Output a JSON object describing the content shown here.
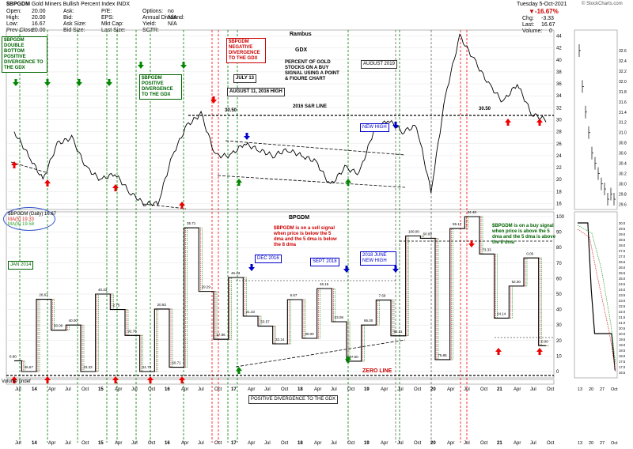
{
  "header": {
    "symbol": "$BPGDM",
    "description": "Gold Miners Bullish Percent Index",
    "exchange": "INDX",
    "date": "Tuesday  5-Oct-2021",
    "change_pct": "▼-16.67%",
    "chg_label": "Chg:",
    "chg_value": "-3.33",
    "last_label": "Last:",
    "last_value": "16.67",
    "volume_label": "Volume:",
    "volume_value": "0",
    "copyright": "© StockCharts.com",
    "fields": [
      [
        "Open",
        "20.00"
      ],
      [
        "High",
        "20.00"
      ],
      [
        "Low",
        "16.67"
      ],
      [
        "Prev Close",
        "20.00"
      ]
    ],
    "fields2": [
      [
        "Ask",
        ""
      ],
      [
        "Bid",
        ""
      ],
      [
        "Ask Size",
        ""
      ],
      [
        "Bid Size",
        ""
      ]
    ],
    "fields3": [
      [
        "P/E",
        ""
      ],
      [
        "EPS",
        ""
      ],
      [
        "Mkt Cap",
        ""
      ],
      [
        "Last Size",
        ""
      ]
    ],
    "fields4": [
      [
        "Options",
        "no"
      ],
      [
        "Annual Dividend",
        "N/A"
      ],
      [
        "Yield",
        "N/A"
      ],
      [
        "SCTR",
        ""
      ]
    ]
  },
  "legend": {
    "title": "$BPGDM (Daily) 16.67",
    "ma5": "MA(5) 19.33",
    "ma8": "MA(8) 19.58"
  },
  "volume_label": "Volume undef",
  "annotations": {
    "double_bottom": "$BPGDM DOUBLE BOTTOM POSITIVE DIVERGENCE TO THE GDX",
    "neg_div": "$BPGDM NEGATIVE DIVERGENCE TO THE GDX",
    "pos_div": "$BPGDM POSITIVE DIVERGENCE TO THE GDX",
    "july13": "JULY 13",
    "aug11": "AUGUST 11, 2016 HIGH",
    "rambus": "Rambus",
    "gdx": "GDX",
    "pct_text": "PERCENT OF GOLD STOCKS ON A BUY SIGNAL USING A POINT & FIGURE CHART",
    "aug2019": "AUGUST 2019",
    "sr_line": "2016 S&R LINE",
    "sr_value1": "30.50",
    "sr_value2": "30.50",
    "new_high": "NEW HIGH",
    "bpgdm_title": "BPGDM",
    "sell_signal": "$BPGDM is on a sell signal when price is below the 5 dma and the 5 dma is below the 8 dma",
    "buy_signal": "$BPGDM is on a buy signal when price is above the 5 dma and the 5 dma is above the 8 dma",
    "jan2014": "JAN 2014",
    "dec2016": "DEC 2016",
    "sept2018": "SEPT 2018",
    "june2018": "2018 JUNE NEW HIGH",
    "zero_line": "ZERO LINE",
    "pos_div_bottom": "POSITIVE DIVERGENCE TO THE GDX"
  },
  "chart_data": [
    {
      "type": "line",
      "title": "GDX",
      "ylim": [
        15,
        45
      ],
      "y_ticks": [
        44,
        42,
        40,
        38,
        36,
        34,
        32,
        30,
        28,
        26,
        24,
        22,
        20,
        18,
        16
      ],
      "x": [
        "2013-07",
        "2013-10",
        "2014-01",
        "2014-04",
        "2014-07",
        "2014-10",
        "2015-01",
        "2015-04",
        "2015-07",
        "2015-10",
        "2016-01",
        "2016-04",
        "2016-07",
        "2016-08",
        "2016-10",
        "2017-01",
        "2017-04",
        "2017-07",
        "2017-10",
        "2018-01",
        "2018-04",
        "2018-07",
        "2018-10",
        "2019-01",
        "2019-04",
        "2019-07",
        "2019-09",
        "2019-10",
        "2020-01",
        "2020-03",
        "2020-05",
        "2020-08",
        "2020-10",
        "2021-01",
        "2021-03",
        "2021-05",
        "2021-07",
        "2021-10"
      ],
      "values": [
        28,
        24,
        20,
        26,
        27,
        22,
        20,
        21,
        18,
        16,
        16,
        24,
        29,
        31,
        24,
        24,
        26,
        25,
        24,
        25,
        24,
        23,
        19,
        22,
        21,
        28,
        30,
        28,
        29,
        18,
        34,
        44,
        40,
        36,
        33,
        36,
        31,
        30
      ]
    },
    {
      "type": "line",
      "title": "BPGDM",
      "ylim": [
        0,
        100
      ],
      "y_ticks": [
        100,
        90,
        80,
        70,
        60,
        50,
        40,
        30,
        20,
        10,
        0
      ],
      "x": [
        "2013-07",
        "2013-10",
        "2014-01",
        "2014-04",
        "2014-07",
        "2014-10",
        "2015-01",
        "2015-04",
        "2015-07",
        "2015-10",
        "2016-01",
        "2016-04",
        "2016-06",
        "2016-08",
        "2016-10",
        "2017-01",
        "2017-04",
        "2017-07",
        "2017-10",
        "2018-01",
        "2018-04",
        "2018-07",
        "2018-10",
        "2019-01",
        "2019-04",
        "2019-07",
        "2019-10",
        "2020-01",
        "2020-03",
        "2020-05",
        "2020-08",
        "2020-10",
        "2021-01",
        "2021-03",
        "2021-05",
        "2021-07",
        "2021-10"
      ],
      "values": [
        6.9,
        0,
        46.67,
        26.67,
        30,
        0,
        50,
        40,
        23.33,
        0,
        40.33,
        2.75,
        92.76,
        51.72,
        20.83,
        60.71,
        35.71,
        29.29,
        17.86,
        46.43,
        21.43,
        53.57,
        32.14,
        6.67,
        30,
        46.15,
        23.08,
        87.5,
        86,
        7.69,
        92.31,
        100,
        75.86,
        34.48,
        55.17,
        73.33,
        16.67
      ],
      "data_labels": [
        "6.90",
        "46.67",
        "26.67",
        "50.00",
        "40.00",
        "23.33",
        "40.33",
        "2.75",
        "92.76",
        "51.72",
        "20.83",
        "60.71",
        "35.71",
        "29.29",
        "17.86",
        "46.43",
        "21.43",
        "53.57",
        "32.14",
        "6.67",
        "30.00",
        "46.15",
        "23.08",
        "87.50",
        "86.00",
        "7.69",
        "92.31",
        "100.00",
        "60.00",
        "75.86",
        "55.17",
        "34.48",
        "73.33",
        "24.14",
        "52.00",
        "0.00",
        "0.00"
      ],
      "series": [
        {
          "name": "MA(5) 19.33",
          "color": "#d62728"
        },
        {
          "name": "MA(8) 19.58",
          "color": "#2ca02c"
        }
      ]
    },
    {
      "type": "line",
      "title": "",
      "ylim": [
        29.5,
        33.0
      ],
      "y_ticks": [
        32.6,
        32.4,
        32.2,
        32.0,
        31.8,
        31.6,
        31.4,
        31.2,
        31.0,
        30.8,
        30.6,
        30.4,
        30.2,
        30.0,
        29.8,
        29.6
      ],
      "x_ticks": [
        "13",
        "20",
        "27",
        "Oct"
      ],
      "values": [
        32.6,
        31.9,
        31.4,
        31.0,
        30.6,
        30.4,
        30.2,
        30.0,
        29.9,
        29.7,
        29.8,
        29.7
      ]
    },
    {
      "type": "line",
      "title": "",
      "ylim": [
        16,
        31
      ],
      "y_ticks": [
        30.0,
        29.5,
        29.0,
        28.5,
        28.0,
        27.5,
        27.0,
        26.5,
        26.0,
        25.5,
        25.0,
        24.5,
        24.0,
        23.5,
        23.0,
        22.5,
        22.0,
        21.5,
        21.0,
        20.5,
        20.0,
        19.5,
        19.0,
        18.5,
        18.0,
        17.5,
        17.0,
        16.5
      ],
      "x_ticks": [
        "13",
        "20",
        "27",
        "Oct"
      ],
      "values": [
        30,
        30,
        30,
        30,
        24,
        20,
        20,
        20,
        20,
        20,
        20,
        16.67
      ]
    }
  ],
  "x_axis": {
    "labels": [
      "Jul",
      "14",
      "Apr",
      "Jul",
      "Oct",
      "15",
      "Apr",
      "Jul",
      "Oct",
      "16",
      "Apr",
      "Jul",
      "Oct",
      "17",
      "Apr",
      "Jul",
      "Oct",
      "18",
      "Apr",
      "Jul",
      "Oct",
      "19",
      "Apr",
      "Jul",
      "Oct",
      "20",
      "Apr",
      "Jul",
      "Oct",
      "21",
      "Apr",
      "Jul",
      "Oct"
    ]
  },
  "colors": {
    "green_line": "#008000",
    "red_line": "#ff0000",
    "price": "#000000",
    "ma5": "#d62728",
    "ma8": "#2ca02c",
    "change_red": "#cc0000",
    "label_blue": "#0000cc"
  }
}
